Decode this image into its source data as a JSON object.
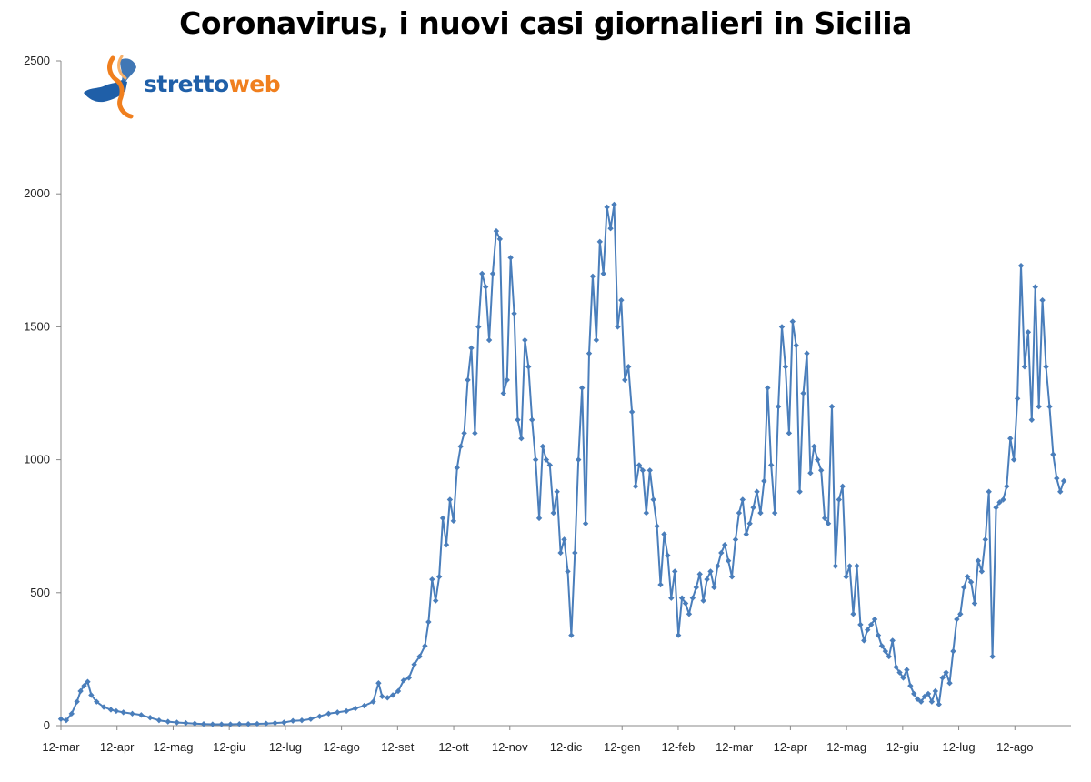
{
  "title": "Coronavirus, i nuovi casi giornalieri in Sicilia",
  "logo": {
    "part1": "stretto",
    "part2": "web"
  },
  "colors": {
    "line": "#4a7ebb",
    "marker": "#4a7ebb",
    "axis": "#888888",
    "logo_blue": "#1f5fa8",
    "logo_orange": "#f07f1e"
  },
  "chart_data": {
    "type": "line",
    "title": "Coronavirus, i nuovi casi giornalieri in Sicilia",
    "xlabel": "",
    "ylabel": "",
    "ylim": [
      0,
      2500
    ],
    "yticks": [
      0,
      500,
      1000,
      1500,
      2000,
      2500
    ],
    "grid": false,
    "x_tick_labels": [
      "12-mar",
      "12-apr",
      "12-mag",
      "12-giu",
      "12-lug",
      "12-ago",
      "12-set",
      "12-ott",
      "12-nov",
      "12-dic",
      "12-gen",
      "12-feb",
      "12-mar",
      "12-apr",
      "12-mag",
      "12-giu",
      "12-lug",
      "12-ago"
    ],
    "series": [
      {
        "x_unit": "days since 12-mar",
        "points": [
          [
            0,
            25
          ],
          [
            3,
            20
          ],
          [
            6,
            45
          ],
          [
            9,
            90
          ],
          [
            11,
            130
          ],
          [
            13,
            150
          ],
          [
            15,
            165
          ],
          [
            17,
            115
          ],
          [
            20,
            90
          ],
          [
            24,
            70
          ],
          [
            28,
            60
          ],
          [
            31,
            55
          ],
          [
            35,
            50
          ],
          [
            40,
            45
          ],
          [
            45,
            40
          ],
          [
            50,
            30
          ],
          [
            55,
            20
          ],
          [
            60,
            15
          ],
          [
            65,
            12
          ],
          [
            70,
            10
          ],
          [
            75,
            8
          ],
          [
            80,
            6
          ],
          [
            85,
            5
          ],
          [
            90,
            5
          ],
          [
            95,
            5
          ],
          [
            100,
            6
          ],
          [
            105,
            6
          ],
          [
            110,
            7
          ],
          [
            115,
            8
          ],
          [
            120,
            10
          ],
          [
            125,
            12
          ],
          [
            130,
            18
          ],
          [
            135,
            20
          ],
          [
            140,
            25
          ],
          [
            145,
            35
          ],
          [
            150,
            45
          ],
          [
            155,
            50
          ],
          [
            160,
            55
          ],
          [
            165,
            65
          ],
          [
            170,
            75
          ],
          [
            175,
            90
          ],
          [
            178,
            160
          ],
          [
            180,
            110
          ],
          [
            183,
            105
          ],
          [
            186,
            115
          ],
          [
            189,
            130
          ],
          [
            192,
            170
          ],
          [
            195,
            180
          ],
          [
            198,
            230
          ],
          [
            201,
            260
          ],
          [
            204,
            300
          ],
          [
            206,
            390
          ],
          [
            208,
            550
          ],
          [
            210,
            470
          ],
          [
            212,
            560
          ],
          [
            214,
            780
          ],
          [
            216,
            680
          ],
          [
            218,
            850
          ],
          [
            220,
            770
          ],
          [
            222,
            970
          ],
          [
            224,
            1050
          ],
          [
            226,
            1100
          ],
          [
            228,
            1300
          ],
          [
            230,
            1420
          ],
          [
            232,
            1100
          ],
          [
            234,
            1500
          ],
          [
            236,
            1700
          ],
          [
            238,
            1650
          ],
          [
            240,
            1450
          ],
          [
            242,
            1700
          ],
          [
            244,
            1860
          ],
          [
            246,
            1830
          ],
          [
            248,
            1250
          ],
          [
            250,
            1300
          ],
          [
            252,
            1760
          ],
          [
            254,
            1550
          ],
          [
            256,
            1150
          ],
          [
            258,
            1080
          ],
          [
            260,
            1450
          ],
          [
            262,
            1350
          ],
          [
            264,
            1150
          ],
          [
            266,
            1000
          ],
          [
            268,
            780
          ],
          [
            270,
            1050
          ],
          [
            272,
            1000
          ],
          [
            274,
            980
          ],
          [
            276,
            800
          ],
          [
            278,
            880
          ],
          [
            280,
            650
          ],
          [
            282,
            700
          ],
          [
            284,
            580
          ],
          [
            286,
            340
          ],
          [
            288,
            650
          ],
          [
            290,
            1000
          ],
          [
            292,
            1270
          ],
          [
            294,
            760
          ],
          [
            296,
            1400
          ],
          [
            298,
            1690
          ],
          [
            300,
            1450
          ],
          [
            302,
            1820
          ],
          [
            304,
            1700
          ],
          [
            306,
            1950
          ],
          [
            308,
            1870
          ],
          [
            310,
            1960
          ],
          [
            312,
            1500
          ],
          [
            314,
            1600
          ],
          [
            316,
            1300
          ],
          [
            318,
            1350
          ],
          [
            320,
            1180
          ],
          [
            322,
            900
          ],
          [
            324,
            980
          ],
          [
            326,
            960
          ],
          [
            328,
            800
          ],
          [
            330,
            960
          ],
          [
            332,
            850
          ],
          [
            334,
            750
          ],
          [
            336,
            530
          ],
          [
            338,
            720
          ],
          [
            340,
            640
          ],
          [
            342,
            480
          ],
          [
            344,
            580
          ],
          [
            346,
            340
          ],
          [
            348,
            480
          ],
          [
            350,
            460
          ],
          [
            352,
            420
          ],
          [
            354,
            480
          ],
          [
            356,
            520
          ],
          [
            358,
            570
          ],
          [
            360,
            470
          ],
          [
            362,
            550
          ],
          [
            364,
            580
          ],
          [
            366,
            520
          ],
          [
            368,
            600
          ],
          [
            370,
            650
          ],
          [
            372,
            680
          ],
          [
            374,
            620
          ],
          [
            376,
            560
          ],
          [
            378,
            700
          ],
          [
            380,
            800
          ],
          [
            382,
            850
          ],
          [
            384,
            720
          ],
          [
            386,
            760
          ],
          [
            388,
            820
          ],
          [
            390,
            880
          ],
          [
            392,
            800
          ],
          [
            394,
            920
          ],
          [
            396,
            1270
          ],
          [
            398,
            980
          ],
          [
            400,
            800
          ],
          [
            402,
            1200
          ],
          [
            404,
            1500
          ],
          [
            406,
            1350
          ],
          [
            408,
            1100
          ],
          [
            410,
            1520
          ],
          [
            412,
            1430
          ],
          [
            414,
            880
          ],
          [
            416,
            1250
          ],
          [
            418,
            1400
          ],
          [
            420,
            950
          ],
          [
            422,
            1050
          ],
          [
            424,
            1000
          ],
          [
            426,
            960
          ],
          [
            428,
            780
          ],
          [
            430,
            760
          ],
          [
            432,
            1200
          ],
          [
            434,
            600
          ],
          [
            436,
            850
          ],
          [
            438,
            900
          ],
          [
            440,
            560
          ],
          [
            442,
            600
          ],
          [
            444,
            420
          ],
          [
            446,
            600
          ],
          [
            448,
            380
          ],
          [
            450,
            320
          ],
          [
            452,
            360
          ],
          [
            454,
            380
          ],
          [
            456,
            400
          ],
          [
            458,
            340
          ],
          [
            460,
            300
          ],
          [
            462,
            280
          ],
          [
            464,
            260
          ],
          [
            466,
            320
          ],
          [
            468,
            220
          ],
          [
            470,
            200
          ],
          [
            472,
            180
          ],
          [
            474,
            210
          ],
          [
            476,
            150
          ],
          [
            478,
            120
          ],
          [
            480,
            100
          ],
          [
            482,
            90
          ],
          [
            484,
            110
          ],
          [
            486,
            120
          ],
          [
            488,
            90
          ],
          [
            490,
            130
          ],
          [
            492,
            80
          ],
          [
            494,
            180
          ],
          [
            496,
            200
          ],
          [
            498,
            160
          ],
          [
            500,
            280
          ],
          [
            502,
            400
          ],
          [
            504,
            420
          ],
          [
            506,
            520
          ],
          [
            508,
            560
          ],
          [
            510,
            540
          ],
          [
            512,
            460
          ],
          [
            514,
            620
          ],
          [
            516,
            580
          ],
          [
            518,
            700
          ],
          [
            520,
            880
          ],
          [
            522,
            260
          ],
          [
            524,
            820
          ],
          [
            526,
            840
          ],
          [
            528,
            850
          ],
          [
            530,
            900
          ],
          [
            532,
            1080
          ],
          [
            534,
            1000
          ],
          [
            536,
            1230
          ],
          [
            538,
            1730
          ],
          [
            540,
            1350
          ],
          [
            542,
            1480
          ],
          [
            544,
            1150
          ],
          [
            546,
            1650
          ],
          [
            548,
            1200
          ],
          [
            550,
            1600
          ],
          [
            552,
            1350
          ],
          [
            554,
            1200
          ],
          [
            556,
            1020
          ],
          [
            558,
            930
          ],
          [
            560,
            880
          ],
          [
            562,
            920
          ]
        ]
      }
    ]
  }
}
